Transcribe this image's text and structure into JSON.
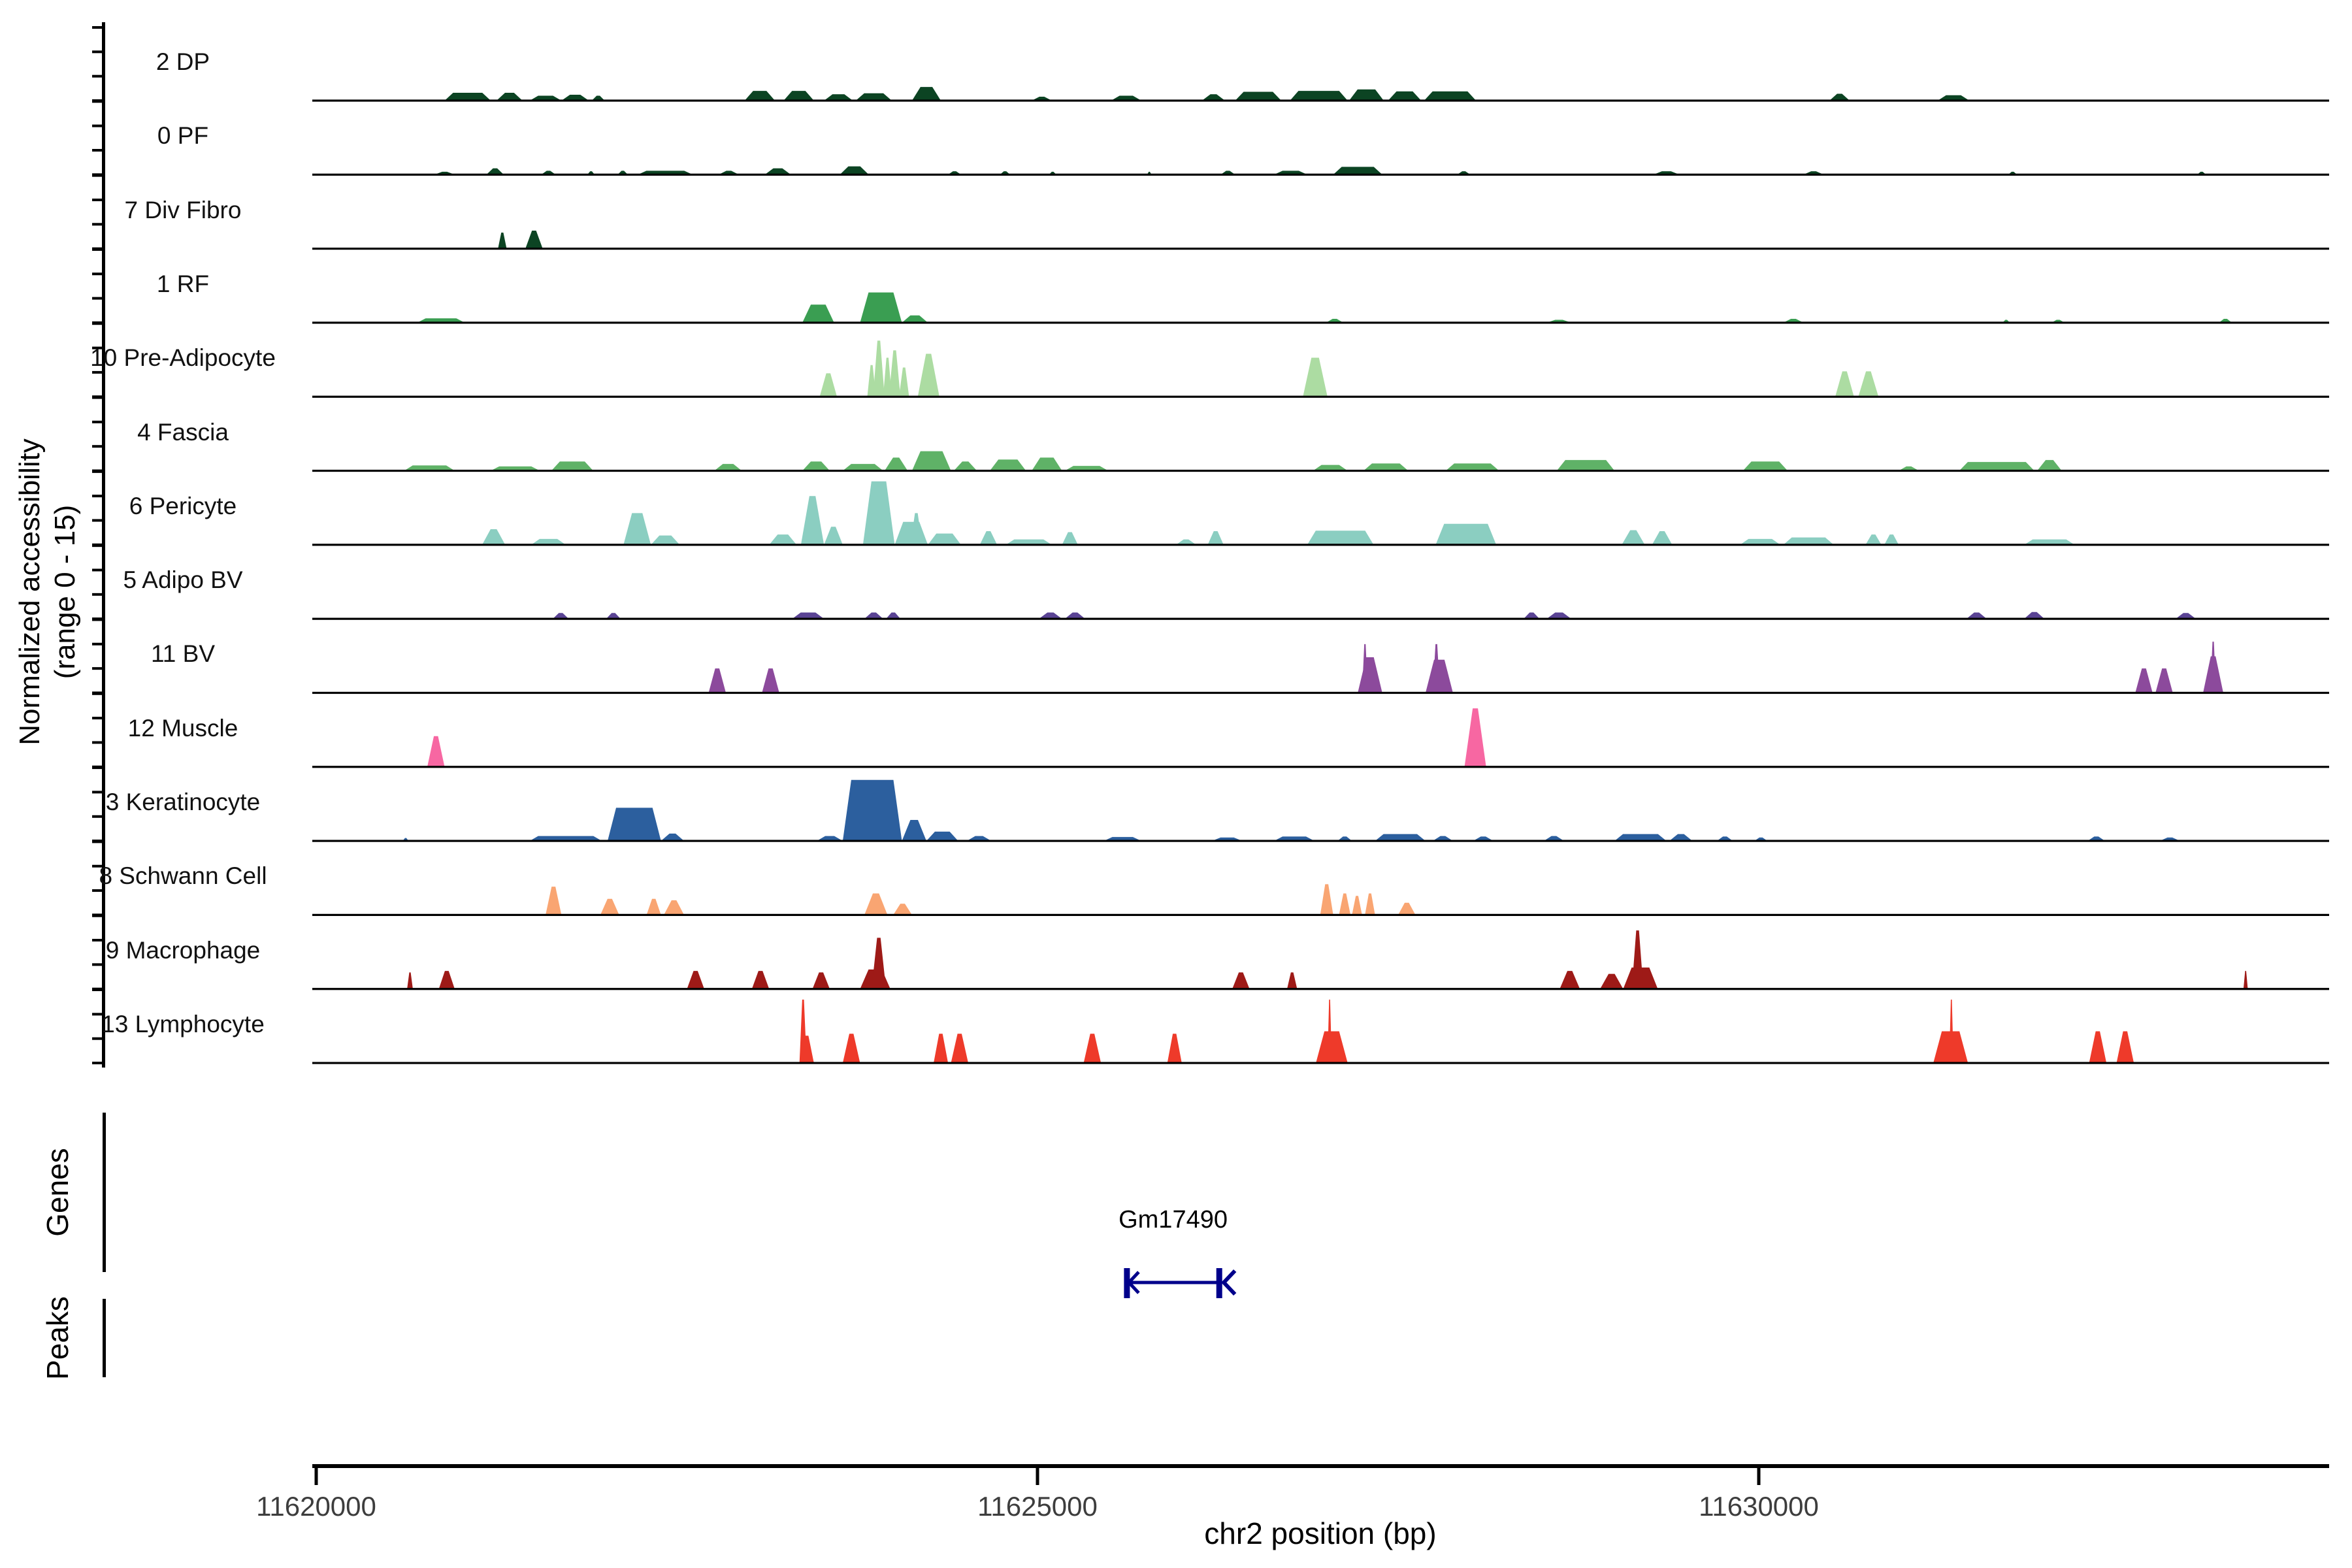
{
  "chart_data": {
    "type": "area",
    "title": "",
    "xlabel": "chr2 position (bp)",
    "ylabel_line1": "Normalized accessibility",
    "ylabel_line2": "(range 0 - 15)",
    "x_ticks": [
      11620000,
      11625000,
      11630000
    ],
    "x_range": [
      11619970,
      11633960
    ],
    "track_value_range": [
      0,
      15
    ],
    "grid": "off",
    "tracks": [
      {
        "id": "2",
        "label": "2 DP",
        "color": "#0C4423",
        "peaks": [
          [
            11620890,
            11621210,
            1.6
          ],
          [
            11621250,
            11621430,
            1.6
          ],
          [
            11621480,
            11621700,
            1.0
          ],
          [
            11621700,
            11621890,
            1.2
          ],
          [
            11621910,
            11622000,
            1.0
          ],
          [
            11622970,
            11623180,
            2.0
          ],
          [
            11623240,
            11623450,
            2.0
          ],
          [
            11623520,
            11623720,
            1.3
          ],
          [
            11623740,
            11623990,
            1.5
          ],
          [
            11624130,
            11624330,
            2.8
          ],
          [
            11624960,
            11625100,
            0.8
          ],
          [
            11625510,
            11625720,
            1.0
          ],
          [
            11626140,
            11626300,
            1.3
          ],
          [
            11626370,
            11626690,
            1.8
          ],
          [
            11626750,
            11627150,
            2.0
          ],
          [
            11627160,
            11627400,
            2.3
          ],
          [
            11627430,
            11627660,
            1.9
          ],
          [
            11627680,
            11628040,
            1.9
          ],
          [
            11630490,
            11630630,
            1.4
          ],
          [
            11631240,
            11631460,
            1.1
          ]
        ]
      },
      {
        "id": "0",
        "label": "0 PF",
        "color": "#0C4423",
        "peaks": [
          [
            11620820,
            11620960,
            0.6
          ],
          [
            11621180,
            11621300,
            1.3
          ],
          [
            11621560,
            11621660,
            0.8
          ],
          [
            11621880,
            11621930,
            0.7
          ],
          [
            11622090,
            11622160,
            0.8
          ],
          [
            11622230,
            11622610,
            0.8
          ],
          [
            11622790,
            11622930,
            0.8
          ],
          [
            11623110,
            11623290,
            1.3
          ],
          [
            11623630,
            11623830,
            1.7
          ],
          [
            11624380,
            11624470,
            0.7
          ],
          [
            11624740,
            11624810,
            0.7
          ],
          [
            11625080,
            11625130,
            0.6
          ],
          [
            11625760,
            11625790,
            0.6
          ],
          [
            11626270,
            11626370,
            0.8
          ],
          [
            11626640,
            11626870,
            0.8
          ],
          [
            11627050,
            11627390,
            1.6
          ],
          [
            11627910,
            11628000,
            0.7
          ],
          [
            11629270,
            11629450,
            0.7
          ],
          [
            11630310,
            11630450,
            0.7
          ],
          [
            11631730,
            11631790,
            0.6
          ],
          [
            11633040,
            11633100,
            0.6
          ]
        ]
      },
      {
        "id": "7",
        "label": "7 Div Fibro",
        "color": "#0C4423",
        "peaks": [
          [
            11621260,
            11621320,
            3.3
          ],
          [
            11621450,
            11621570,
            3.7
          ]
        ]
      },
      {
        "id": "1",
        "label": "1 RF",
        "color": "#3A9E52",
        "peaks": [
          [
            11620700,
            11621030,
            0.9
          ],
          [
            11623370,
            11623590,
            3.7
          ],
          [
            11623770,
            11624060,
            6.2
          ],
          [
            11624060,
            11624240,
            1.5
          ],
          [
            11627000,
            11627120,
            0.8
          ],
          [
            11628530,
            11628700,
            0.6
          ],
          [
            11630170,
            11630310,
            0.8
          ],
          [
            11631690,
            11631740,
            0.6
          ],
          [
            11632030,
            11632120,
            0.6
          ],
          [
            11633190,
            11633280,
            0.8
          ]
        ]
      },
      {
        "id": "10",
        "label": "10 Pre-Adipocyte",
        "color": "#ACDCA2",
        "peaks": [
          [
            11623490,
            11623610,
            4.8
          ],
          [
            11623820,
            11623880,
            6.5
          ],
          [
            11623860,
            11623940,
            11.5
          ],
          [
            11623930,
            11623990,
            8.0
          ],
          [
            11623970,
            11624050,
            9.5
          ],
          [
            11624040,
            11624110,
            6.0
          ],
          [
            11624170,
            11624320,
            8.8
          ],
          [
            11626840,
            11627010,
            8.0
          ],
          [
            11630530,
            11630660,
            5.2
          ],
          [
            11630690,
            11630830,
            5.2
          ]
        ]
      },
      {
        "id": "4",
        "label": "4 Fascia",
        "color": "#5FB267",
        "peaks": [
          [
            11620610,
            11620960,
            1.1
          ],
          [
            11621210,
            11621550,
            0.9
          ],
          [
            11621630,
            11621920,
            1.9
          ],
          [
            11622760,
            11622950,
            1.4
          ],
          [
            11623370,
            11623560,
            1.9
          ],
          [
            11623650,
            11623930,
            1.4
          ],
          [
            11623940,
            11624100,
            2.7
          ],
          [
            11624130,
            11624400,
            4.0
          ],
          [
            11624420,
            11624580,
            1.9
          ],
          [
            11624670,
            11624920,
            2.3
          ],
          [
            11624960,
            11625170,
            2.7
          ],
          [
            11625190,
            11625490,
            1.0
          ],
          [
            11626910,
            11627150,
            1.2
          ],
          [
            11627260,
            11627570,
            1.5
          ],
          [
            11627830,
            11628200,
            1.5
          ],
          [
            11628600,
            11629000,
            2.2
          ],
          [
            11629890,
            11630200,
            1.9
          ],
          [
            11630970,
            11631110,
            0.9
          ],
          [
            11631390,
            11631910,
            1.8
          ],
          [
            11631930,
            11632100,
            2.2
          ]
        ]
      },
      {
        "id": "6",
        "label": "6 Pericyte",
        "color": "#8BCEC1",
        "peaks": [
          [
            11621150,
            11621310,
            3.2
          ],
          [
            11621490,
            11621730,
            1.2
          ],
          [
            11622130,
            11622320,
            6.5
          ],
          [
            11622320,
            11622520,
            1.9
          ],
          [
            11623140,
            11623330,
            2.1
          ],
          [
            11623360,
            11623520,
            10.0
          ],
          [
            11623520,
            11623650,
            3.7
          ],
          [
            11623790,
            11624010,
            13.0
          ],
          [
            11624010,
            11624240,
            4.7
          ],
          [
            11624120,
            11624200,
            6.5
          ],
          [
            11624240,
            11624470,
            2.3
          ],
          [
            11624600,
            11624720,
            2.8
          ],
          [
            11624780,
            11625100,
            1.1
          ],
          [
            11625170,
            11625280,
            2.6
          ],
          [
            11625960,
            11626100,
            1.1
          ],
          [
            11626180,
            11626290,
            2.8
          ],
          [
            11626870,
            11627330,
            2.9
          ],
          [
            11627760,
            11628180,
            4.3
          ],
          [
            11629050,
            11629210,
            3.0
          ],
          [
            11629260,
            11629400,
            2.8
          ],
          [
            11629870,
            11630150,
            1.2
          ],
          [
            11630170,
            11630520,
            1.5
          ],
          [
            11630740,
            11630850,
            2.1
          ],
          [
            11630870,
            11630970,
            2.1
          ],
          [
            11631840,
            11632190,
            1.1
          ]
        ]
      },
      {
        "id": "5",
        "label": "5 Adipo BV",
        "color": "#5A4394",
        "peaks": [
          [
            11621640,
            11621750,
            1.2
          ],
          [
            11622010,
            11622110,
            1.2
          ],
          [
            11623300,
            11623520,
            1.3
          ],
          [
            11623800,
            11623930,
            1.3
          ],
          [
            11623950,
            11624050,
            1.3
          ],
          [
            11625010,
            11625170,
            1.3
          ],
          [
            11625190,
            11625330,
            1.3
          ],
          [
            11628370,
            11628480,
            1.3
          ],
          [
            11628530,
            11628700,
            1.3
          ],
          [
            11631440,
            11631580,
            1.3
          ],
          [
            11631840,
            11631980,
            1.4
          ],
          [
            11632890,
            11633030,
            1.2
          ]
        ]
      },
      {
        "id": "11",
        "label": "11 BV",
        "color": "#8C4A9C",
        "peaks": [
          [
            11622720,
            11622840,
            5.0
          ],
          [
            11623090,
            11623210,
            5.0
          ],
          [
            11627220,
            11627390,
            7.3
          ],
          [
            11627250,
            11627290,
            10.0
          ],
          [
            11627690,
            11627880,
            6.8
          ],
          [
            11627740,
            11627790,
            10.0
          ],
          [
            11632610,
            11632730,
            5.0
          ],
          [
            11632750,
            11632870,
            5.0
          ],
          [
            11633080,
            11633220,
            7.5
          ],
          [
            11633130,
            11633170,
            10.5
          ]
        ]
      },
      {
        "id": "12",
        "label": "12 Muscle",
        "color": "#F767A2",
        "peaks": [
          [
            11620770,
            11620890,
            6.3
          ],
          [
            11627960,
            11628110,
            12.0
          ]
        ]
      },
      {
        "id": "3",
        "label": "3 Keratinocyte",
        "color": "#2C5F9E",
        "peaks": [
          [
            11620600,
            11620640,
            0.6
          ],
          [
            11621480,
            11621980,
            1.0
          ],
          [
            11622020,
            11622390,
            6.8
          ],
          [
            11622390,
            11622550,
            1.5
          ],
          [
            11623470,
            11623650,
            1.0
          ],
          [
            11623650,
            11624060,
            12.5
          ],
          [
            11624060,
            11624230,
            4.3
          ],
          [
            11624230,
            11624450,
            1.9
          ],
          [
            11624510,
            11624680,
            1.0
          ],
          [
            11625460,
            11625720,
            0.8
          ],
          [
            11626210,
            11626420,
            0.7
          ],
          [
            11626640,
            11626920,
            0.9
          ],
          [
            11627080,
            11627180,
            0.9
          ],
          [
            11627340,
            11627690,
            1.4
          ],
          [
            11627740,
            11627880,
            1.0
          ],
          [
            11628020,
            11628160,
            0.9
          ],
          [
            11628510,
            11628650,
            1.0
          ],
          [
            11629000,
            11629360,
            1.4
          ],
          [
            11629380,
            11629540,
            1.4
          ],
          [
            11629710,
            11629820,
            0.9
          ],
          [
            11629970,
            11630060,
            0.7
          ],
          [
            11632280,
            11632400,
            0.9
          ],
          [
            11632780,
            11632920,
            0.7
          ]
        ]
      },
      {
        "id": "8",
        "label": "8 Schwann Cell",
        "color": "#F9A572",
        "peaks": [
          [
            11621590,
            11621700,
            5.8
          ],
          [
            11621970,
            11622100,
            3.3
          ],
          [
            11622290,
            11622390,
            3.3
          ],
          [
            11622410,
            11622550,
            3.0
          ],
          [
            11623800,
            11623960,
            4.4
          ],
          [
            11624000,
            11624130,
            2.3
          ],
          [
            11626960,
            11627050,
            6.3
          ],
          [
            11627090,
            11627170,
            4.4
          ],
          [
            11627180,
            11627250,
            3.9
          ],
          [
            11627270,
            11627340,
            4.4
          ],
          [
            11627500,
            11627620,
            2.5
          ]
        ]
      },
      {
        "id": "9",
        "label": "9 Macrophage",
        "color": "#9E1A17",
        "peaks": [
          [
            11620630,
            11620670,
            3.4
          ],
          [
            11620850,
            11620960,
            3.7
          ],
          [
            11622570,
            11622690,
            3.7
          ],
          [
            11623020,
            11623140,
            3.7
          ],
          [
            11623440,
            11623560,
            3.4
          ],
          [
            11623770,
            11623980,
            4.0
          ],
          [
            11623850,
            11623950,
            10.5
          ],
          [
            11626350,
            11626470,
            3.4
          ],
          [
            11626730,
            11626800,
            3.4
          ],
          [
            11628620,
            11628760,
            3.7
          ],
          [
            11628900,
            11629060,
            3.1
          ],
          [
            11629060,
            11629300,
            4.4
          ],
          [
            11629120,
            11629200,
            12.0
          ],
          [
            11633360,
            11633390,
            3.7
          ]
        ]
      },
      {
        "id": "13",
        "label": "13 Lymphocyte",
        "color": "#EE3A2A",
        "peaks": [
          [
            11623350,
            11623400,
            13.0
          ],
          [
            11623350,
            11623450,
            5.6
          ],
          [
            11623650,
            11623770,
            6.0
          ],
          [
            11624280,
            11624380,
            6.0
          ],
          [
            11624400,
            11624520,
            6.0
          ],
          [
            11625320,
            11625440,
            6.0
          ],
          [
            11625900,
            11626000,
            6.0
          ],
          [
            11626930,
            11627150,
            6.5
          ],
          [
            11627010,
            11627040,
            13.0
          ],
          [
            11631210,
            11631450,
            6.5
          ],
          [
            11631320,
            11631350,
            13.0
          ],
          [
            11632290,
            11632410,
            6.5
          ],
          [
            11632480,
            11632600,
            6.5
          ]
        ]
      }
    ],
    "genes": {
      "label": "Genes",
      "items": [
        {
          "name": "Gm17490",
          "strand": "-",
          "start": 11625620,
          "end": 11626260,
          "color": "#00008B"
        }
      ]
    },
    "peaks_section": {
      "label": "Peaks",
      "items": []
    }
  }
}
